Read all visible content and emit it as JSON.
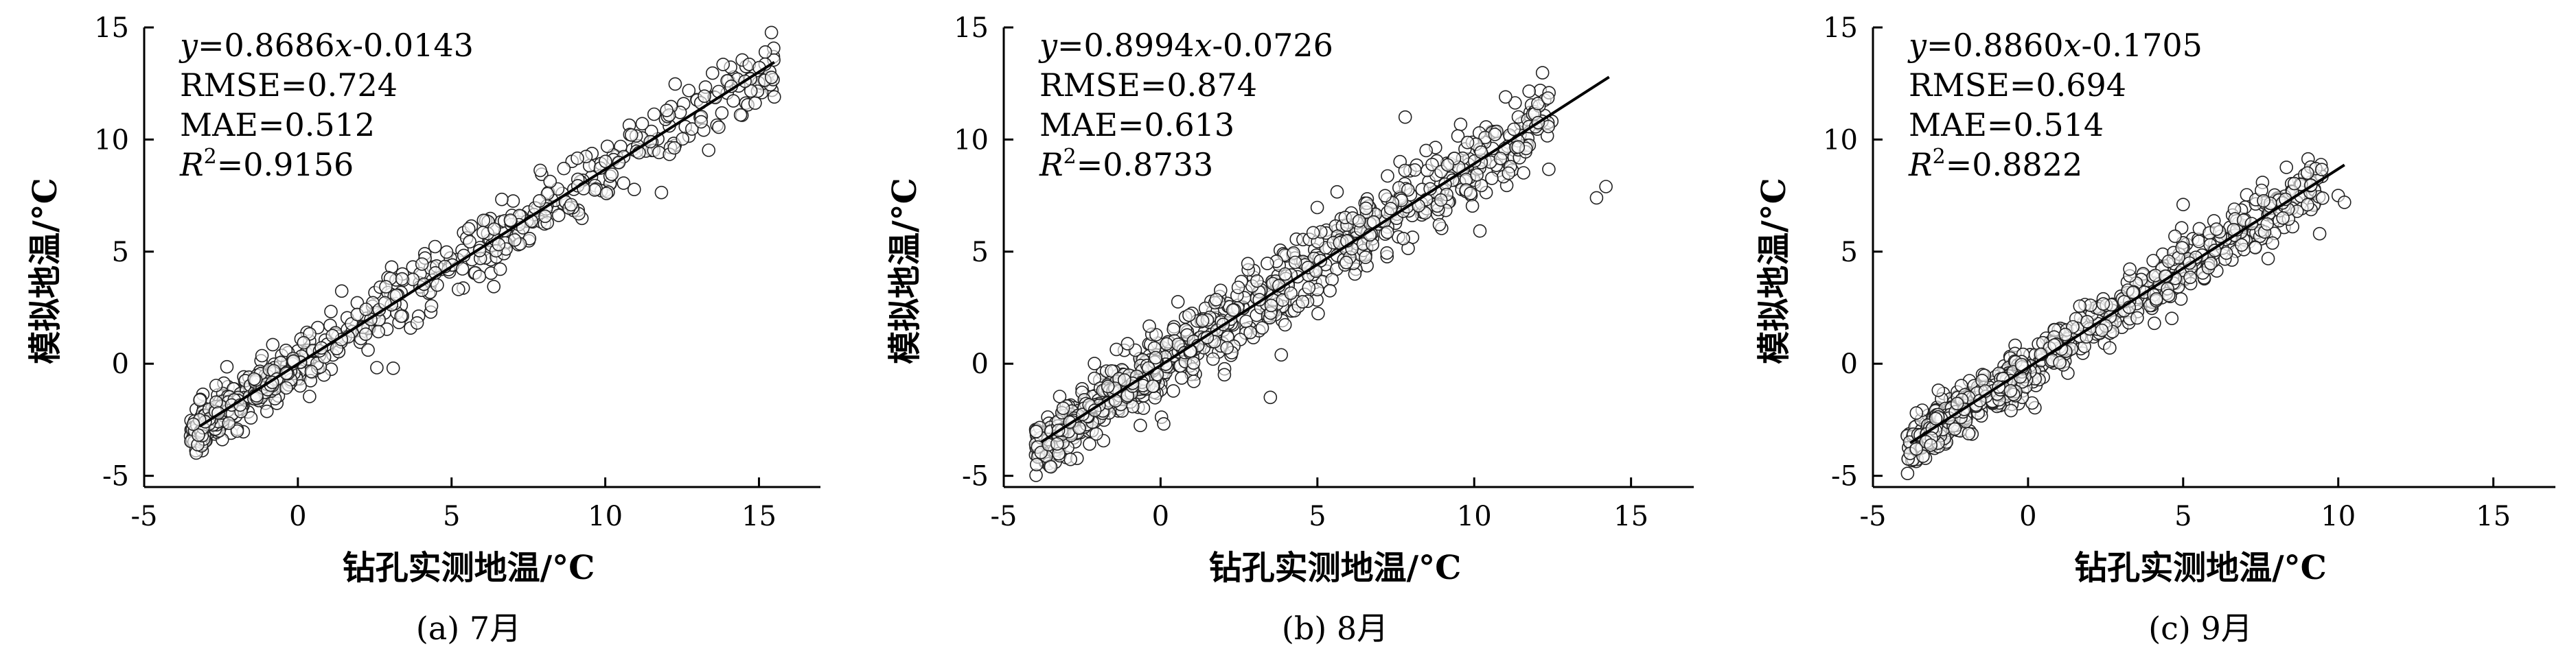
{
  "chart_data": [
    {
      "type": "scatter",
      "caption": "(a) 7月",
      "xlabel": "钻孔实测地温/°C",
      "ylabel": "模拟地温/°C",
      "xlim": [
        -5,
        17
      ],
      "ylim": [
        -5.5,
        15
      ],
      "xticks": [
        -5,
        0,
        5,
        10,
        15
      ],
      "yticks": [
        -5,
        0,
        5,
        10,
        15
      ],
      "grid": false,
      "annotations": {
        "eq_y": "y",
        "eq_mid": "=0.8686",
        "eq_x": "x",
        "eq_end": "-0.0143",
        "rmse": "RMSE=0.724",
        "mae": "MAE=0.512",
        "r2_r": "R",
        "r2_sup": "2",
        "r2_val": "=0.9156"
      },
      "fit": {
        "slope": 0.8686,
        "intercept": -0.0143,
        "x_range": [
          -3.2,
          15.5
        ]
      },
      "point_model": {
        "n": 520,
        "x_range": [
          -3.5,
          15.5
        ],
        "noise": 0.75
      },
      "extra_points": [
        [
          15.5,
          11.9
        ],
        [
          14.4,
          11.1
        ],
        [
          12.0,
          11.3
        ],
        [
          -3.2,
          -2.5
        ],
        [
          -3.4,
          -2.7
        ],
        [
          3.1,
          -0.2
        ]
      ]
    },
    {
      "type": "scatter",
      "caption": "(b) 8月",
      "xlabel": "钻孔实测地温/°C",
      "ylabel": "模拟地温/°C",
      "xlim": [
        -5,
        17
      ],
      "ylim": [
        -5.5,
        15
      ],
      "xticks": [
        -5,
        0,
        5,
        10,
        15
      ],
      "yticks": [
        -5,
        0,
        5,
        10,
        15
      ],
      "grid": false,
      "annotations": {
        "eq_y": "y",
        "eq_mid": "=0.8994",
        "eq_x": "x",
        "eq_end": "-0.0726",
        "rmse": "RMSE=0.874",
        "mae": "MAE=0.613",
        "r2_r": "R",
        "r2_sup": "2",
        "r2_val": "=0.8733"
      },
      "fit": {
        "slope": 0.8994,
        "intercept": -0.0726,
        "x_range": [
          -3.8,
          14.3
        ]
      },
      "point_model": {
        "n": 760,
        "x_range": [
          -4.0,
          12.5
        ],
        "noise": 1.0
      },
      "extra_points": [
        [
          14.2,
          7.9
        ],
        [
          13.9,
          7.4
        ],
        [
          11.0,
          11.9
        ],
        [
          7.8,
          11.0
        ],
        [
          -3.5,
          -4.6
        ],
        [
          3.5,
          -1.5
        ]
      ]
    },
    {
      "type": "scatter",
      "caption": "(c) 9月",
      "xlabel": "钻孔实测地温/°C",
      "ylabel": "模拟地温/°C",
      "xlim": [
        -5,
        17
      ],
      "ylim": [
        -5.5,
        15
      ],
      "xticks": [
        -5,
        0,
        5,
        10,
        15
      ],
      "yticks": [
        -5,
        0,
        5,
        10,
        15
      ],
      "grid": false,
      "annotations": {
        "eq_y": "y",
        "eq_mid": "=0.8860",
        "eq_x": "x",
        "eq_end": "-0.1705",
        "rmse": "RMSE=0.694",
        "mae": "MAE=0.514",
        "r2_r": "R",
        "r2_sup": "2",
        "r2_val": "=0.8822"
      },
      "fit": {
        "slope": 0.886,
        "intercept": -0.1705,
        "x_range": [
          -3.8,
          10.2
        ]
      },
      "point_model": {
        "n": 640,
        "x_range": [
          -3.9,
          9.5
        ],
        "noise": 0.7
      },
      "extra_points": [
        [
          10.0,
          7.5
        ],
        [
          10.2,
          7.2
        ],
        [
          9.4,
          5.8
        ],
        [
          -3.8,
          -4.0
        ],
        [
          -3.6,
          -3.8
        ],
        [
          5.0,
          7.1
        ]
      ]
    }
  ]
}
